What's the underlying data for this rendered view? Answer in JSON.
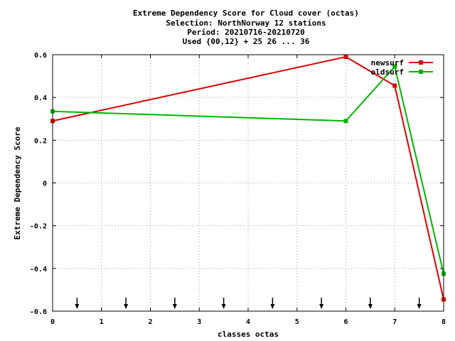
{
  "chart_data": {
    "type": "line",
    "title_lines": [
      "Extreme Dependency Score  for Cloud cover (octas)",
      "Selection: NorthNorway     12 stations",
      "Period: 20210716-20210720",
      "Used {00,12} + 25 26 ... 36"
    ],
    "xlabel": "classes octas",
    "ylabel": "Extreme Dependency Score",
    "xlim": [
      0,
      8
    ],
    "ylim": [
      -0.6,
      0.6
    ],
    "x_ticks": [
      0,
      1,
      2,
      3,
      4,
      5,
      6,
      7,
      8
    ],
    "x_tick_labels": [
      "0",
      "1",
      "2",
      "3",
      "4",
      "5",
      "6",
      "7",
      "8"
    ],
    "y_ticks": [
      -0.6,
      -0.4,
      -0.2,
      0,
      0.2,
      0.4,
      0.6
    ],
    "y_tick_labels": [
      "-0.6",
      "-0.4",
      "-0.2",
      "0",
      "0.2",
      "0.4",
      "0.6"
    ],
    "grid": true,
    "legend_position": "top-right",
    "arrow_markers_x": [
      0.5,
      1.5,
      2.5,
      3.5,
      4.5,
      5.5,
      6.5,
      7.5
    ],
    "series": [
      {
        "name": "newsurf",
        "color": "#e00000",
        "x": [
          0,
          6,
          7,
          8
        ],
        "y": [
          0.29,
          0.59,
          0.455,
          -0.545
        ]
      },
      {
        "name": "oldsurf",
        "color": "#00b400",
        "x": [
          0,
          6,
          7,
          8
        ],
        "y": [
          0.335,
          0.29,
          0.545,
          -0.425
        ]
      }
    ]
  }
}
